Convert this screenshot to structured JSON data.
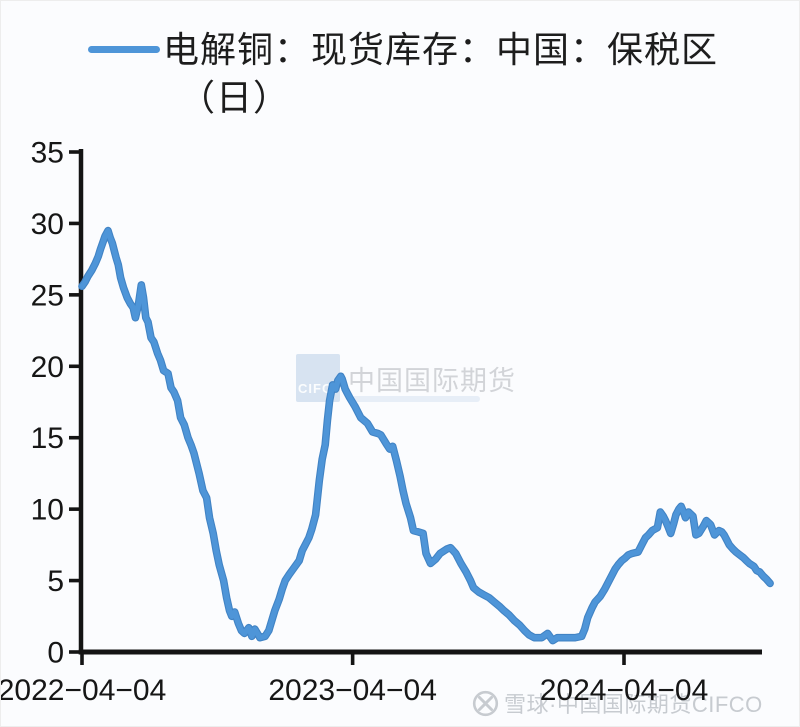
{
  "page": {
    "background": "#fbfcfe"
  },
  "legend": {
    "label_line1": "电解铜：现货库存：中国：保税区",
    "label_line2": "（日）",
    "line_color": "#4e95d8"
  },
  "watermark_center": {
    "box_text": "CIFC",
    "text": "中国国际期货"
  },
  "watermark_bottom": {
    "text": "雪球·中国国际期货CIFCO",
    "icon": "xueqiu-logo",
    "color": "#c7cbd0"
  },
  "chart_data": {
    "type": "line",
    "title": "电解铜：现货库存：中国：保税区（日）",
    "xlabel": "",
    "ylabel": "",
    "ylim": [
      0,
      35
    ],
    "y_ticks": [
      0,
      5,
      10,
      15,
      20,
      25,
      30,
      35
    ],
    "x_ticks": [
      {
        "date": "2022-04-04",
        "label": "2022−04−04"
      },
      {
        "date": "2023-04-04",
        "label": "2023−04−04"
      },
      {
        "date": "2024-04-04",
        "label": "2024−04−04"
      }
    ],
    "grid": false,
    "legend_position": "top-center",
    "line_color": "#4e95d8",
    "line_edge_color": "#4183c4",
    "axis_color": "#141414",
    "series": [
      {
        "name": "电解铜：现货库存：中国：保税区（日）",
        "points": [
          [
            "2022-04-04",
            25.6
          ],
          [
            "2022-04-08",
            25.9
          ],
          [
            "2022-04-12",
            26.3
          ],
          [
            "2022-04-17",
            26.7
          ],
          [
            "2022-04-22",
            27.2
          ],
          [
            "2022-04-26",
            27.7
          ],
          [
            "2022-04-29",
            28.2
          ],
          [
            "2022-05-03",
            28.8
          ],
          [
            "2022-05-05",
            29.1
          ],
          [
            "2022-05-09",
            29.5
          ],
          [
            "2022-05-12",
            29.0
          ],
          [
            "2022-05-15",
            28.6
          ],
          [
            "2022-05-18",
            28.0
          ],
          [
            "2022-05-20",
            27.6
          ],
          [
            "2022-05-23",
            27.1
          ],
          [
            "2022-05-26",
            26.2
          ],
          [
            "2022-05-30",
            25.5
          ],
          [
            "2022-06-04",
            24.8
          ],
          [
            "2022-06-08",
            24.4
          ],
          [
            "2022-06-12",
            24.1
          ],
          [
            "2022-06-15",
            23.4
          ],
          [
            "2022-06-19",
            24.3
          ],
          [
            "2022-06-23",
            25.7
          ],
          [
            "2022-06-26",
            24.8
          ],
          [
            "2022-06-29",
            23.4
          ],
          [
            "2022-07-02",
            23.1
          ],
          [
            "2022-07-06",
            22.0
          ],
          [
            "2022-07-10",
            21.7
          ],
          [
            "2022-07-15",
            20.9
          ],
          [
            "2022-07-19",
            20.4
          ],
          [
            "2022-07-23",
            19.7
          ],
          [
            "2022-07-29",
            19.5
          ],
          [
            "2022-08-02",
            18.5
          ],
          [
            "2022-08-06",
            18.2
          ],
          [
            "2022-08-11",
            17.6
          ],
          [
            "2022-08-15",
            16.4
          ],
          [
            "2022-08-20",
            15.9
          ],
          [
            "2022-08-25",
            15.0
          ],
          [
            "2022-08-29",
            14.5
          ],
          [
            "2022-09-02",
            13.9
          ],
          [
            "2022-09-09",
            12.5
          ],
          [
            "2022-09-14",
            11.3
          ],
          [
            "2022-09-19",
            10.8
          ],
          [
            "2022-09-23",
            9.4
          ],
          [
            "2022-09-28",
            8.3
          ],
          [
            "2022-10-02",
            7.1
          ],
          [
            "2022-10-06",
            6.1
          ],
          [
            "2022-10-12",
            5.0
          ],
          [
            "2022-10-16",
            3.8
          ],
          [
            "2022-10-20",
            2.9
          ],
          [
            "2022-10-23",
            2.5
          ],
          [
            "2022-10-27",
            2.8
          ],
          [
            "2022-11-01",
            2.0
          ],
          [
            "2022-11-05",
            1.5
          ],
          [
            "2022-11-09",
            1.3
          ],
          [
            "2022-11-15",
            1.7
          ],
          [
            "2022-11-19",
            1.1
          ],
          [
            "2022-11-23",
            1.6
          ],
          [
            "2022-11-30",
            1.0
          ],
          [
            "2022-12-07",
            1.1
          ],
          [
            "2022-12-12",
            1.5
          ],
          [
            "2022-12-16",
            2.2
          ],
          [
            "2022-12-20",
            2.9
          ],
          [
            "2022-12-26",
            3.7
          ],
          [
            "2022-12-30",
            4.4
          ],
          [
            "2023-01-03",
            5.0
          ],
          [
            "2023-01-08",
            5.4
          ],
          [
            "2023-01-15",
            5.9
          ],
          [
            "2023-01-22",
            6.4
          ],
          [
            "2023-01-26",
            7.1
          ],
          [
            "2023-01-30",
            7.5
          ],
          [
            "2023-02-04",
            8.0
          ],
          [
            "2023-02-08",
            8.6
          ],
          [
            "2023-02-13",
            9.6
          ],
          [
            "2023-02-15",
            10.5
          ],
          [
            "2023-02-18",
            12.0
          ],
          [
            "2023-02-22",
            13.5
          ],
          [
            "2023-02-26",
            14.5
          ],
          [
            "2023-03-01",
            16.2
          ],
          [
            "2023-03-04",
            17.6
          ],
          [
            "2023-03-08",
            18.7
          ],
          [
            "2023-03-12",
            18.4
          ],
          [
            "2023-03-15",
            19.0
          ],
          [
            "2023-03-19",
            19.3
          ],
          [
            "2023-03-21",
            19.1
          ],
          [
            "2023-03-25",
            18.4
          ],
          [
            "2023-03-28",
            18.1
          ],
          [
            "2023-03-31",
            17.8
          ],
          [
            "2023-04-07",
            17.2
          ],
          [
            "2023-04-15",
            16.4
          ],
          [
            "2023-04-24",
            16.0
          ],
          [
            "2023-05-01",
            15.4
          ],
          [
            "2023-05-08",
            15.3
          ],
          [
            "2023-05-12",
            15.2
          ],
          [
            "2023-05-19",
            14.6
          ],
          [
            "2023-05-24",
            14.2
          ],
          [
            "2023-05-28",
            14.4
          ],
          [
            "2023-06-02",
            13.4
          ],
          [
            "2023-06-07",
            12.3
          ],
          [
            "2023-06-11",
            11.3
          ],
          [
            "2023-06-15",
            10.4
          ],
          [
            "2023-06-21",
            9.4
          ],
          [
            "2023-06-25",
            8.5
          ],
          [
            "2023-07-02",
            8.4
          ],
          [
            "2023-07-08",
            8.3
          ],
          [
            "2023-07-12",
            6.9
          ],
          [
            "2023-07-18",
            6.2
          ],
          [
            "2023-07-25",
            6.5
          ],
          [
            "2023-07-31",
            6.9
          ],
          [
            "2023-08-09",
            7.2
          ],
          [
            "2023-08-14",
            7.3
          ],
          [
            "2023-08-21",
            6.9
          ],
          [
            "2023-08-28",
            6.2
          ],
          [
            "2023-09-04",
            5.6
          ],
          [
            "2023-09-10",
            5.0
          ],
          [
            "2023-09-14",
            4.5
          ],
          [
            "2023-09-21",
            4.2
          ],
          [
            "2023-09-28",
            4.0
          ],
          [
            "2023-10-05",
            3.8
          ],
          [
            "2023-10-12",
            3.5
          ],
          [
            "2023-10-19",
            3.2
          ],
          [
            "2023-10-25",
            2.9
          ],
          [
            "2023-11-01",
            2.6
          ],
          [
            "2023-11-08",
            2.2
          ],
          [
            "2023-11-15",
            1.9
          ],
          [
            "2023-11-22",
            1.5
          ],
          [
            "2023-11-28",
            1.2
          ],
          [
            "2023-12-05",
            1.0
          ],
          [
            "2023-12-15",
            1.0
          ],
          [
            "2023-12-23",
            1.3
          ],
          [
            "2023-12-30",
            0.8
          ],
          [
            "2024-01-05",
            1.0
          ],
          [
            "2024-01-15",
            1.0
          ],
          [
            "2024-01-29",
            1.0
          ],
          [
            "2024-02-07",
            1.1
          ],
          [
            "2024-02-11",
            1.6
          ],
          [
            "2024-02-15",
            2.4
          ],
          [
            "2024-02-21",
            3.1
          ],
          [
            "2024-02-25",
            3.5
          ],
          [
            "2024-03-03",
            3.9
          ],
          [
            "2024-03-09",
            4.4
          ],
          [
            "2024-03-16",
            5.1
          ],
          [
            "2024-03-23",
            5.8
          ],
          [
            "2024-03-27",
            6.1
          ],
          [
            "2024-04-01",
            6.4
          ],
          [
            "2024-04-06",
            6.6
          ],
          [
            "2024-04-10",
            6.8
          ],
          [
            "2024-04-15",
            6.9
          ],
          [
            "2024-04-23",
            7.0
          ],
          [
            "2024-04-29",
            7.6
          ],
          [
            "2024-05-03",
            8.0
          ],
          [
            "2024-05-07",
            8.2
          ],
          [
            "2024-05-12",
            8.5
          ],
          [
            "2024-05-19",
            8.7
          ],
          [
            "2024-05-23",
            9.8
          ],
          [
            "2024-05-27",
            9.5
          ],
          [
            "2024-05-30",
            9.2
          ],
          [
            "2024-06-03",
            8.7
          ],
          [
            "2024-06-06",
            8.3
          ],
          [
            "2024-06-10",
            9.0
          ],
          [
            "2024-06-13",
            9.6
          ],
          [
            "2024-06-17",
            10.0
          ],
          [
            "2024-06-20",
            10.2
          ],
          [
            "2024-06-24",
            9.7
          ],
          [
            "2024-06-26",
            9.4
          ],
          [
            "2024-06-30",
            9.8
          ],
          [
            "2024-07-06",
            9.5
          ],
          [
            "2024-07-10",
            8.2
          ],
          [
            "2024-07-14",
            8.3
          ],
          [
            "2024-07-20",
            8.8
          ],
          [
            "2024-07-24",
            9.2
          ],
          [
            "2024-07-28",
            9.0
          ],
          [
            "2024-07-30",
            8.9
          ],
          [
            "2024-08-04",
            8.2
          ],
          [
            "2024-08-08",
            8.4
          ],
          [
            "2024-08-10",
            8.5
          ],
          [
            "2024-08-14",
            8.4
          ],
          [
            "2024-08-17",
            8.2
          ],
          [
            "2024-08-21",
            7.8
          ],
          [
            "2024-08-24",
            7.5
          ],
          [
            "2024-08-29",
            7.2
          ],
          [
            "2024-09-02",
            7.0
          ],
          [
            "2024-09-07",
            6.8
          ],
          [
            "2024-09-12",
            6.6
          ],
          [
            "2024-09-16",
            6.4
          ],
          [
            "2024-09-20",
            6.2
          ],
          [
            "2024-09-26",
            6.0
          ],
          [
            "2024-09-30",
            5.7
          ],
          [
            "2024-10-04",
            5.6
          ],
          [
            "2024-10-09",
            5.3
          ],
          [
            "2024-10-13",
            5.1
          ],
          [
            "2024-10-18",
            4.8
          ]
        ]
      }
    ]
  }
}
